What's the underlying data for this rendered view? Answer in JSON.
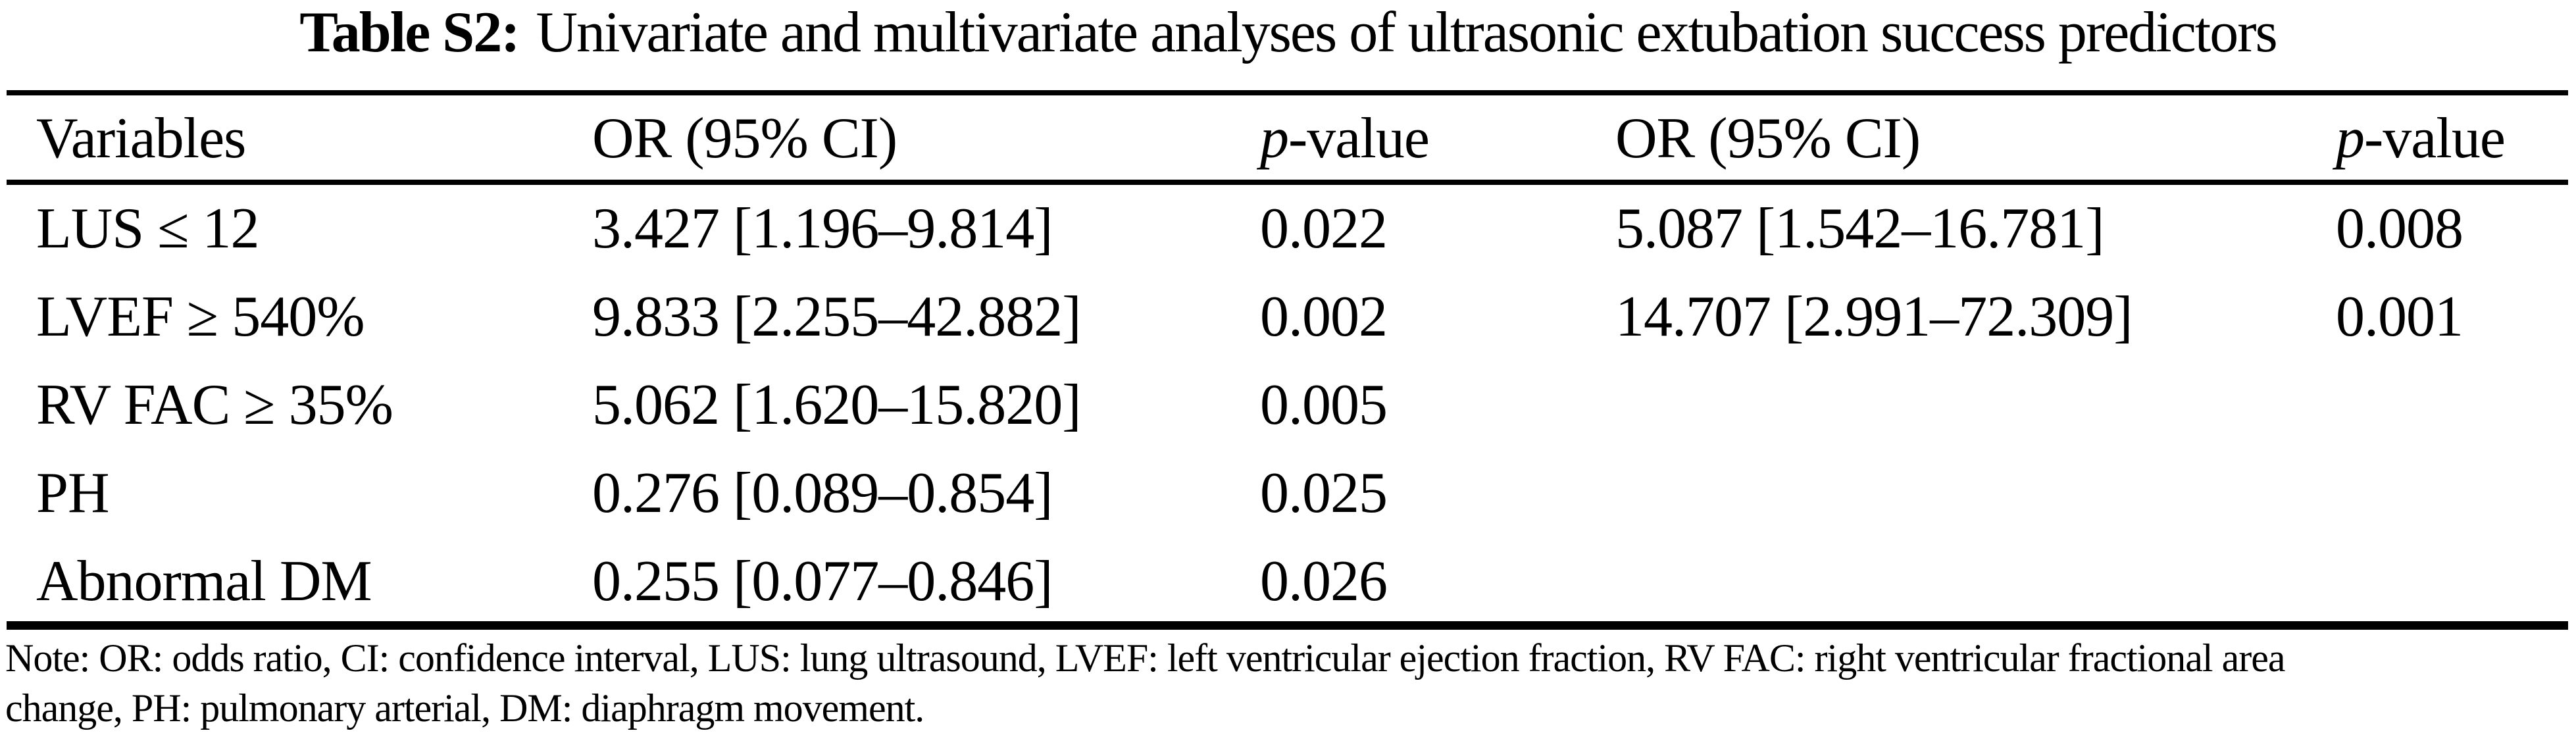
{
  "title": {
    "label": "Table S2:",
    "text": "Univariate and multivariate analyses of ultrasonic extubation success predictors"
  },
  "table": {
    "header": {
      "variables": "Variables",
      "or_univariate": "OR (95% CI)",
      "p_italic": "p",
      "p_rest": "-value",
      "or_multivariate": "OR (95% CI)"
    },
    "rows": [
      {
        "variable": "LUS ≤ 12",
        "or_univariate": "3.427 [1.196–9.814]",
        "p_univariate": "0.022",
        "or_multivariate": "5.087 [1.542–16.781]",
        "p_multivariate": "0.008"
      },
      {
        "variable": "LVEF ≥ 540%",
        "or_univariate": "9.833 [2.255–42.882]",
        "p_univariate": "0.002",
        "or_multivariate": "14.707 [2.991–72.309]",
        "p_multivariate": "0.001"
      },
      {
        "variable": "RV FAC ≥ 35%",
        "or_univariate": "5.062 [1.620–15.820]",
        "p_univariate": "0.005",
        "or_multivariate": "",
        "p_multivariate": ""
      },
      {
        "variable": "PH",
        "or_univariate": "0.276 [0.089–0.854]",
        "p_univariate": "0.025",
        "or_multivariate": "",
        "p_multivariate": ""
      },
      {
        "variable": "Abnormal DM",
        "or_univariate": "0.255 [0.077–0.846]",
        "p_univariate": "0.026",
        "or_multivariate": "",
        "p_multivariate": ""
      }
    ]
  },
  "note": {
    "line1": "Note: OR: odds ratio, CI: confidence interval, LUS: lung ultrasound, LVEF: left ventricular ejection fraction, RV FAC: right ventricular fractional area",
    "line2": "change, PH: pulmonary arterial, DM: diaphragm movement."
  },
  "colors": {
    "background": "#ffffff",
    "text": "#000000",
    "rule": "#000000"
  }
}
